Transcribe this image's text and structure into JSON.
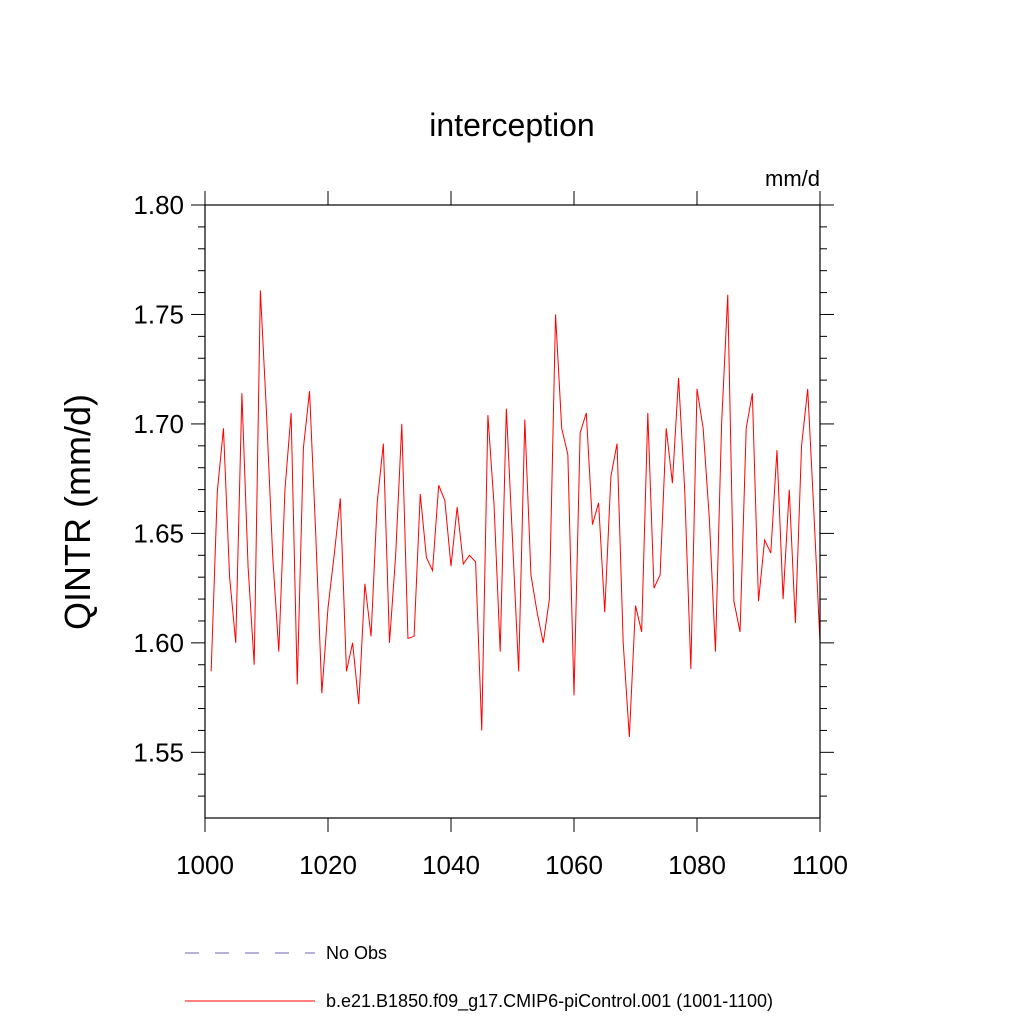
{
  "chart_data": {
    "type": "line",
    "title": "interception",
    "subtitle_right": "mm/d",
    "xlabel": "",
    "ylabel": "QINTR  (mm/d)",
    "xlim": [
      1000,
      1100
    ],
    "ylim": [
      1.52,
      1.8
    ],
    "x_ticks": [
      1000,
      1020,
      1040,
      1060,
      1080,
      1100
    ],
    "x_tick_labels": [
      "1000",
      "1020",
      "1040",
      "1060",
      "1080",
      "1100"
    ],
    "y_ticks": [
      1.55,
      1.6,
      1.65,
      1.7,
      1.75,
      1.8
    ],
    "y_tick_labels": [
      "1.55",
      "1.60",
      "1.65",
      "1.70",
      "1.75",
      "1.80"
    ],
    "grid": false,
    "legend_position": "bottom",
    "series": [
      {
        "name": "b.e21.B1850.f09_g17.CMIP6-piControl.001 (1001-1100)",
        "color": "#ff0000",
        "style": "solid",
        "x": [
          1001,
          1002,
          1003,
          1004,
          1005,
          1006,
          1007,
          1008,
          1009,
          1010,
          1011,
          1012,
          1013,
          1014,
          1015,
          1016,
          1017,
          1018,
          1019,
          1020,
          1021,
          1022,
          1023,
          1024,
          1025,
          1026,
          1027,
          1028,
          1029,
          1030,
          1031,
          1032,
          1033,
          1034,
          1035,
          1036,
          1037,
          1038,
          1039,
          1040,
          1041,
          1042,
          1043,
          1044,
          1045,
          1046,
          1047,
          1048,
          1049,
          1050,
          1051,
          1052,
          1053,
          1054,
          1055,
          1056,
          1057,
          1058,
          1059,
          1060,
          1061,
          1062,
          1063,
          1064,
          1065,
          1066,
          1067,
          1068,
          1069,
          1070,
          1071,
          1072,
          1073,
          1074,
          1075,
          1076,
          1077,
          1078,
          1079,
          1080,
          1081,
          1082,
          1083,
          1084,
          1085,
          1086,
          1087,
          1088,
          1089,
          1090,
          1091,
          1092,
          1093,
          1094,
          1095,
          1096,
          1097,
          1098,
          1099,
          1100
        ],
        "values": [
          1.587,
          1.669,
          1.698,
          1.63,
          1.6,
          1.714,
          1.635,
          1.59,
          1.761,
          1.705,
          1.64,
          1.596,
          1.67,
          1.705,
          1.581,
          1.689,
          1.715,
          1.65,
          1.577,
          1.616,
          1.64,
          1.666,
          1.587,
          1.6,
          1.572,
          1.627,
          1.603,
          1.664,
          1.691,
          1.6,
          1.64,
          1.7,
          1.602,
          1.603,
          1.668,
          1.639,
          1.633,
          1.672,
          1.665,
          1.635,
          1.662,
          1.636,
          1.64,
          1.637,
          1.56,
          1.704,
          1.663,
          1.596,
          1.707,
          1.647,
          1.587,
          1.702,
          1.631,
          1.614,
          1.6,
          1.62,
          1.75,
          1.698,
          1.686,
          1.576,
          1.696,
          1.705,
          1.654,
          1.664,
          1.614,
          1.676,
          1.691,
          1.6,
          1.557,
          1.617,
          1.605,
          1.705,
          1.625,
          1.631,
          1.698,
          1.673,
          1.721,
          1.67,
          1.588,
          1.716,
          1.698,
          1.657,
          1.596,
          1.7,
          1.759,
          1.619,
          1.605,
          1.698,
          1.714,
          1.619,
          1.647,
          1.641,
          1.688,
          1.62,
          1.67,
          1.609,
          1.69,
          1.716,
          1.66,
          1.6
        ]
      },
      {
        "name": "No Obs",
        "color": "#6c63b5",
        "style": "dashed",
        "x": [],
        "values": []
      }
    ]
  }
}
